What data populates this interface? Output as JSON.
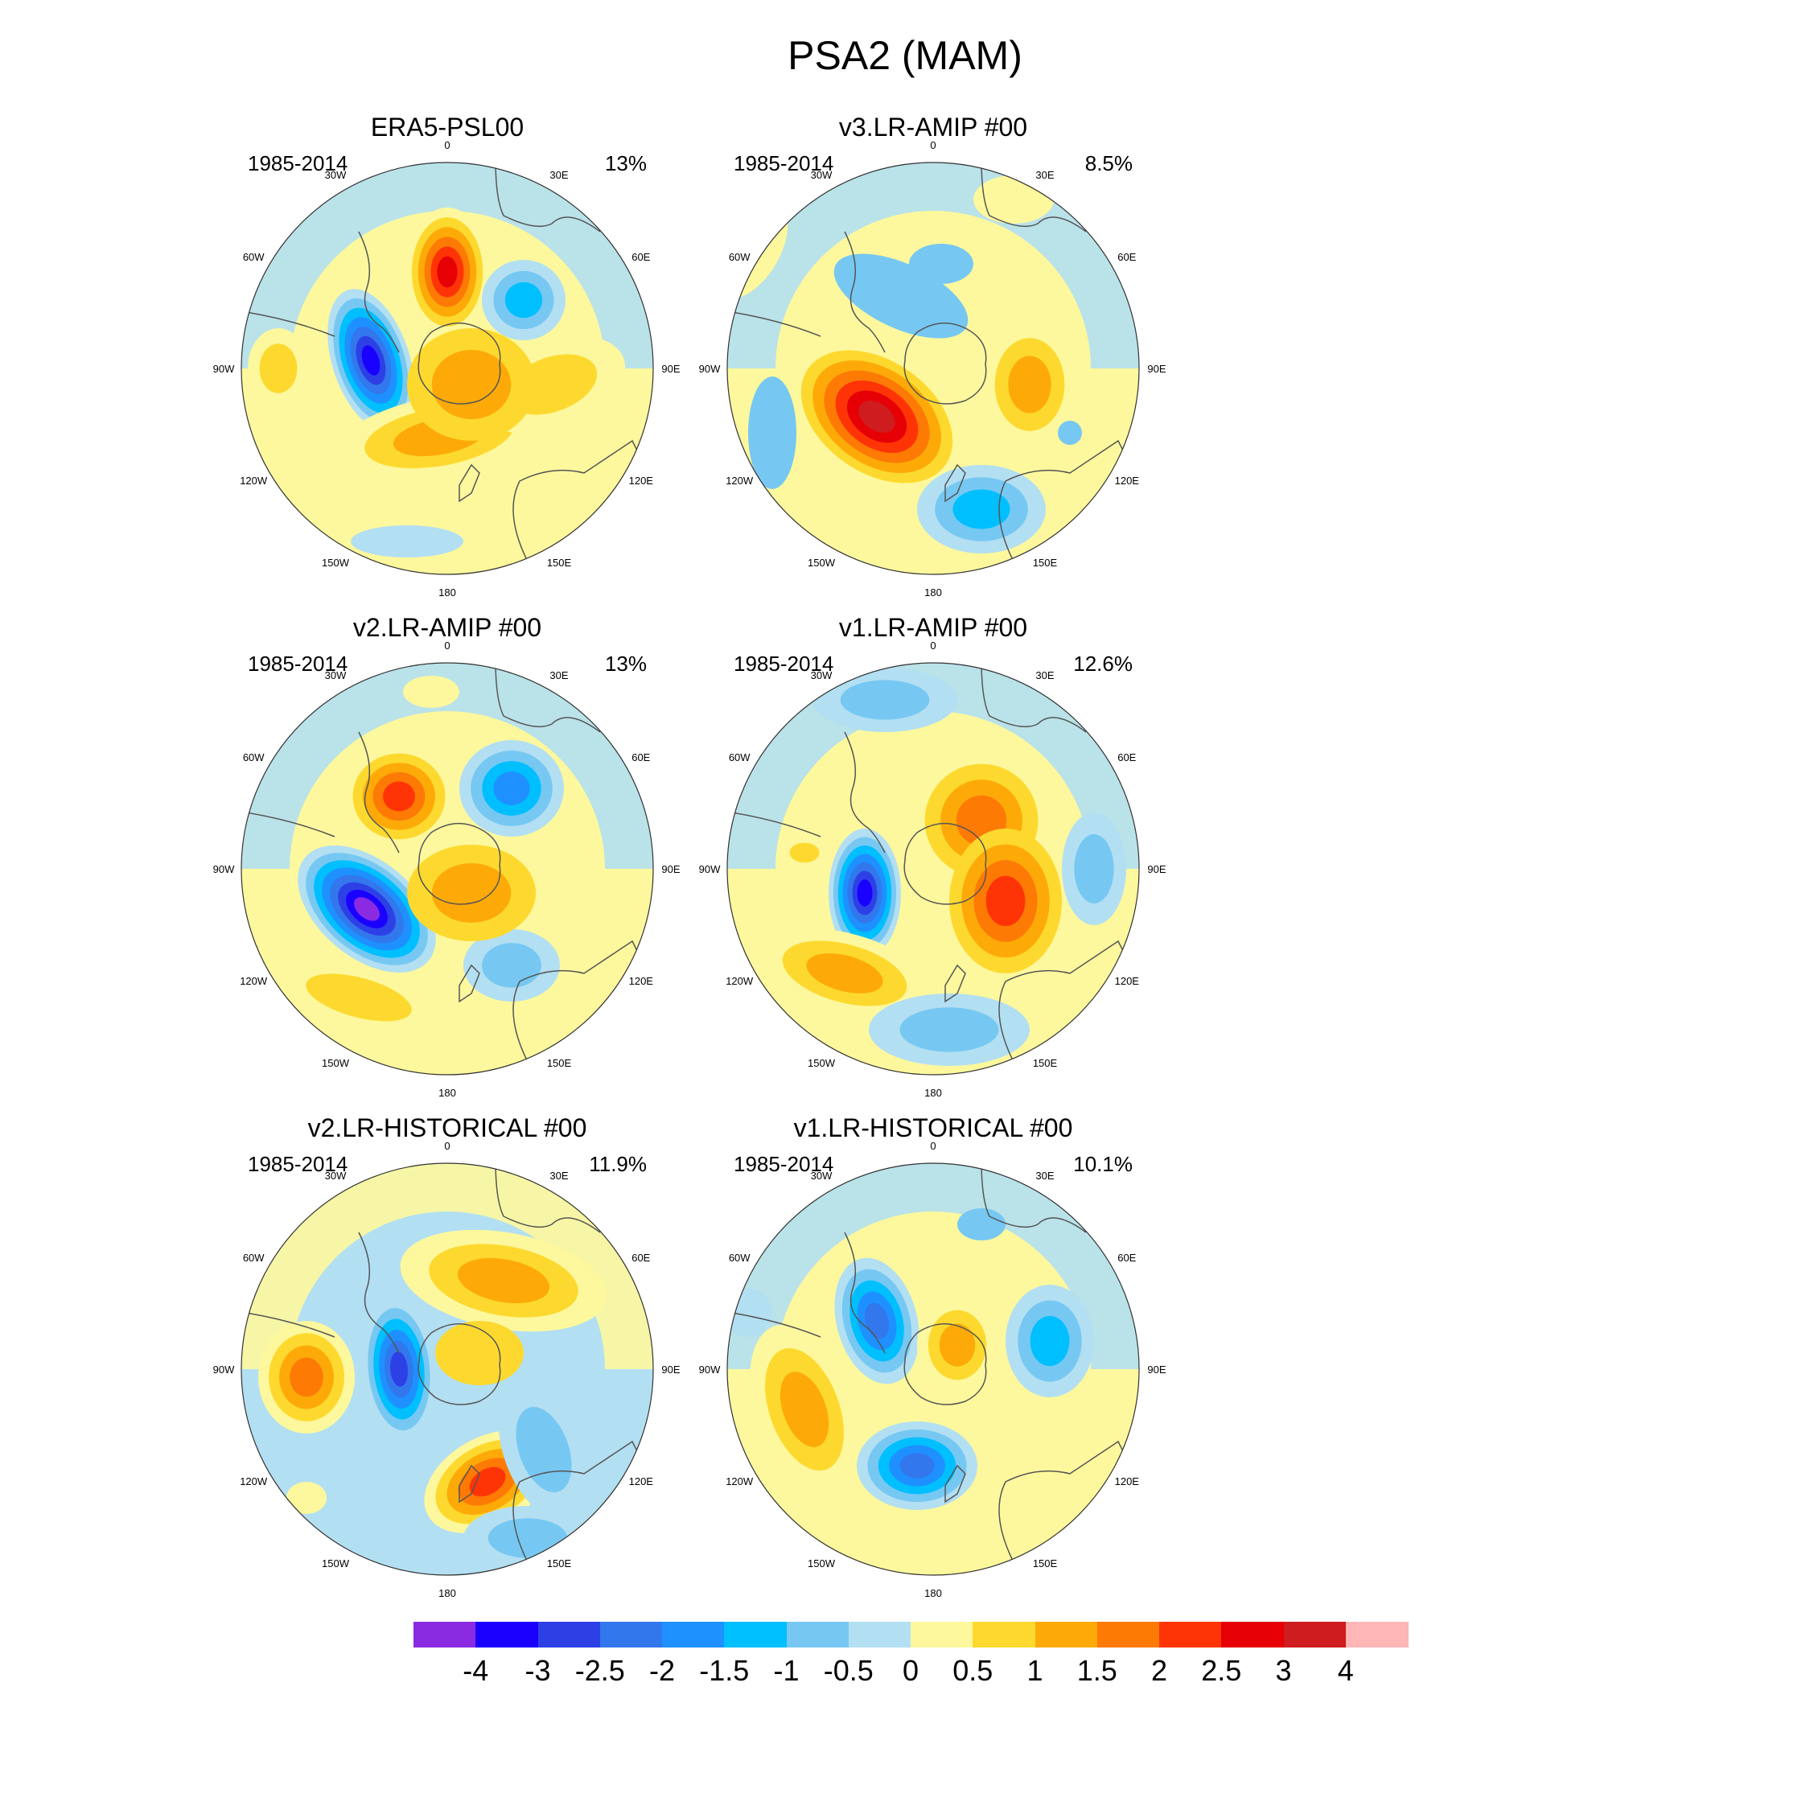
{
  "title": "PSA2 (MAM)",
  "panels": [
    {
      "title": "ERA5-PSL00",
      "years": "1985-2014",
      "pct": "13%"
    },
    {
      "title": "v3.LR-AMIP  #00",
      "years": "1985-2014",
      "pct": "8.5%"
    },
    {
      "title": "v2.LR-AMIP  #00",
      "years": "1985-2014",
      "pct": "13%"
    },
    {
      "title": "v1.LR-AMIP  #00",
      "years": "1985-2014",
      "pct": "12.6%"
    },
    {
      "title": "v2.LR-HISTORICAL  #00",
      "years": "1985-2014",
      "pct": "11.9%"
    },
    {
      "title": "v1.LR-HISTORICAL  #00",
      "years": "1985-2014",
      "pct": "10.1%"
    }
  ],
  "longitude_labels": [
    "0",
    "30E",
    "60E",
    "90E",
    "120E",
    "150E",
    "180",
    "150W",
    "120W",
    "90W",
    "60W",
    "30W"
  ],
  "colorbar": {
    "colors": [
      "#8a2be2",
      "#1a00ff",
      "#2d40e6",
      "#3377ec",
      "#1e90ff",
      "#00bfff",
      "#76c8f2",
      "#b3dff2",
      "#fdf89d",
      "#fdd92f",
      "#fdaa08",
      "#fd7a05",
      "#fe3406",
      "#e60005",
      "#ce1c1f",
      "#feb6b6"
    ],
    "labels": [
      "-4",
      "-3",
      "-2.5",
      "-2",
      "-1.5",
      "-1",
      "-0.5",
      "0",
      "0.5",
      "1",
      "1.5",
      "2",
      "2.5",
      "3",
      "4"
    ]
  }
}
